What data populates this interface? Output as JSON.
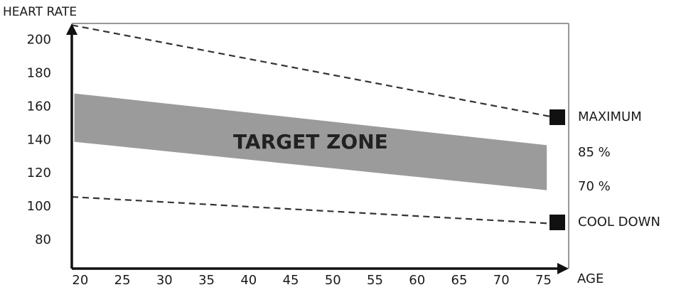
{
  "chart_data": {
    "type": "line",
    "y_label": "HEART RATE",
    "x_label": "AGE",
    "xlim": [
      19,
      78
    ],
    "ylim": [
      63,
      210
    ],
    "xticks": [
      20,
      25,
      30,
      35,
      40,
      45,
      50,
      55,
      60,
      65,
      70,
      75
    ],
    "yticks": [
      80,
      100,
      120,
      140,
      160,
      180,
      200
    ],
    "grid": false,
    "series": [
      {
        "name": "MAXIMUM",
        "color": "#333333",
        "dashed": true,
        "x": [
          19,
          76
        ],
        "values": [
          209,
          154
        ]
      },
      {
        "name": "COOL DOWN",
        "color": "#333333",
        "dashed": true,
        "x": [
          19,
          76
        ],
        "values": [
          106,
          90
        ]
      }
    ],
    "band": {
      "label": "TARGET ZONE",
      "color": "#9b9b9b",
      "upper_name": "85 %",
      "lower_name": "70 %",
      "x": [
        19.3,
        75.4
      ],
      "upper": [
        168,
        137
      ],
      "lower": [
        139,
        110
      ]
    },
    "marker_color": "#111111"
  }
}
